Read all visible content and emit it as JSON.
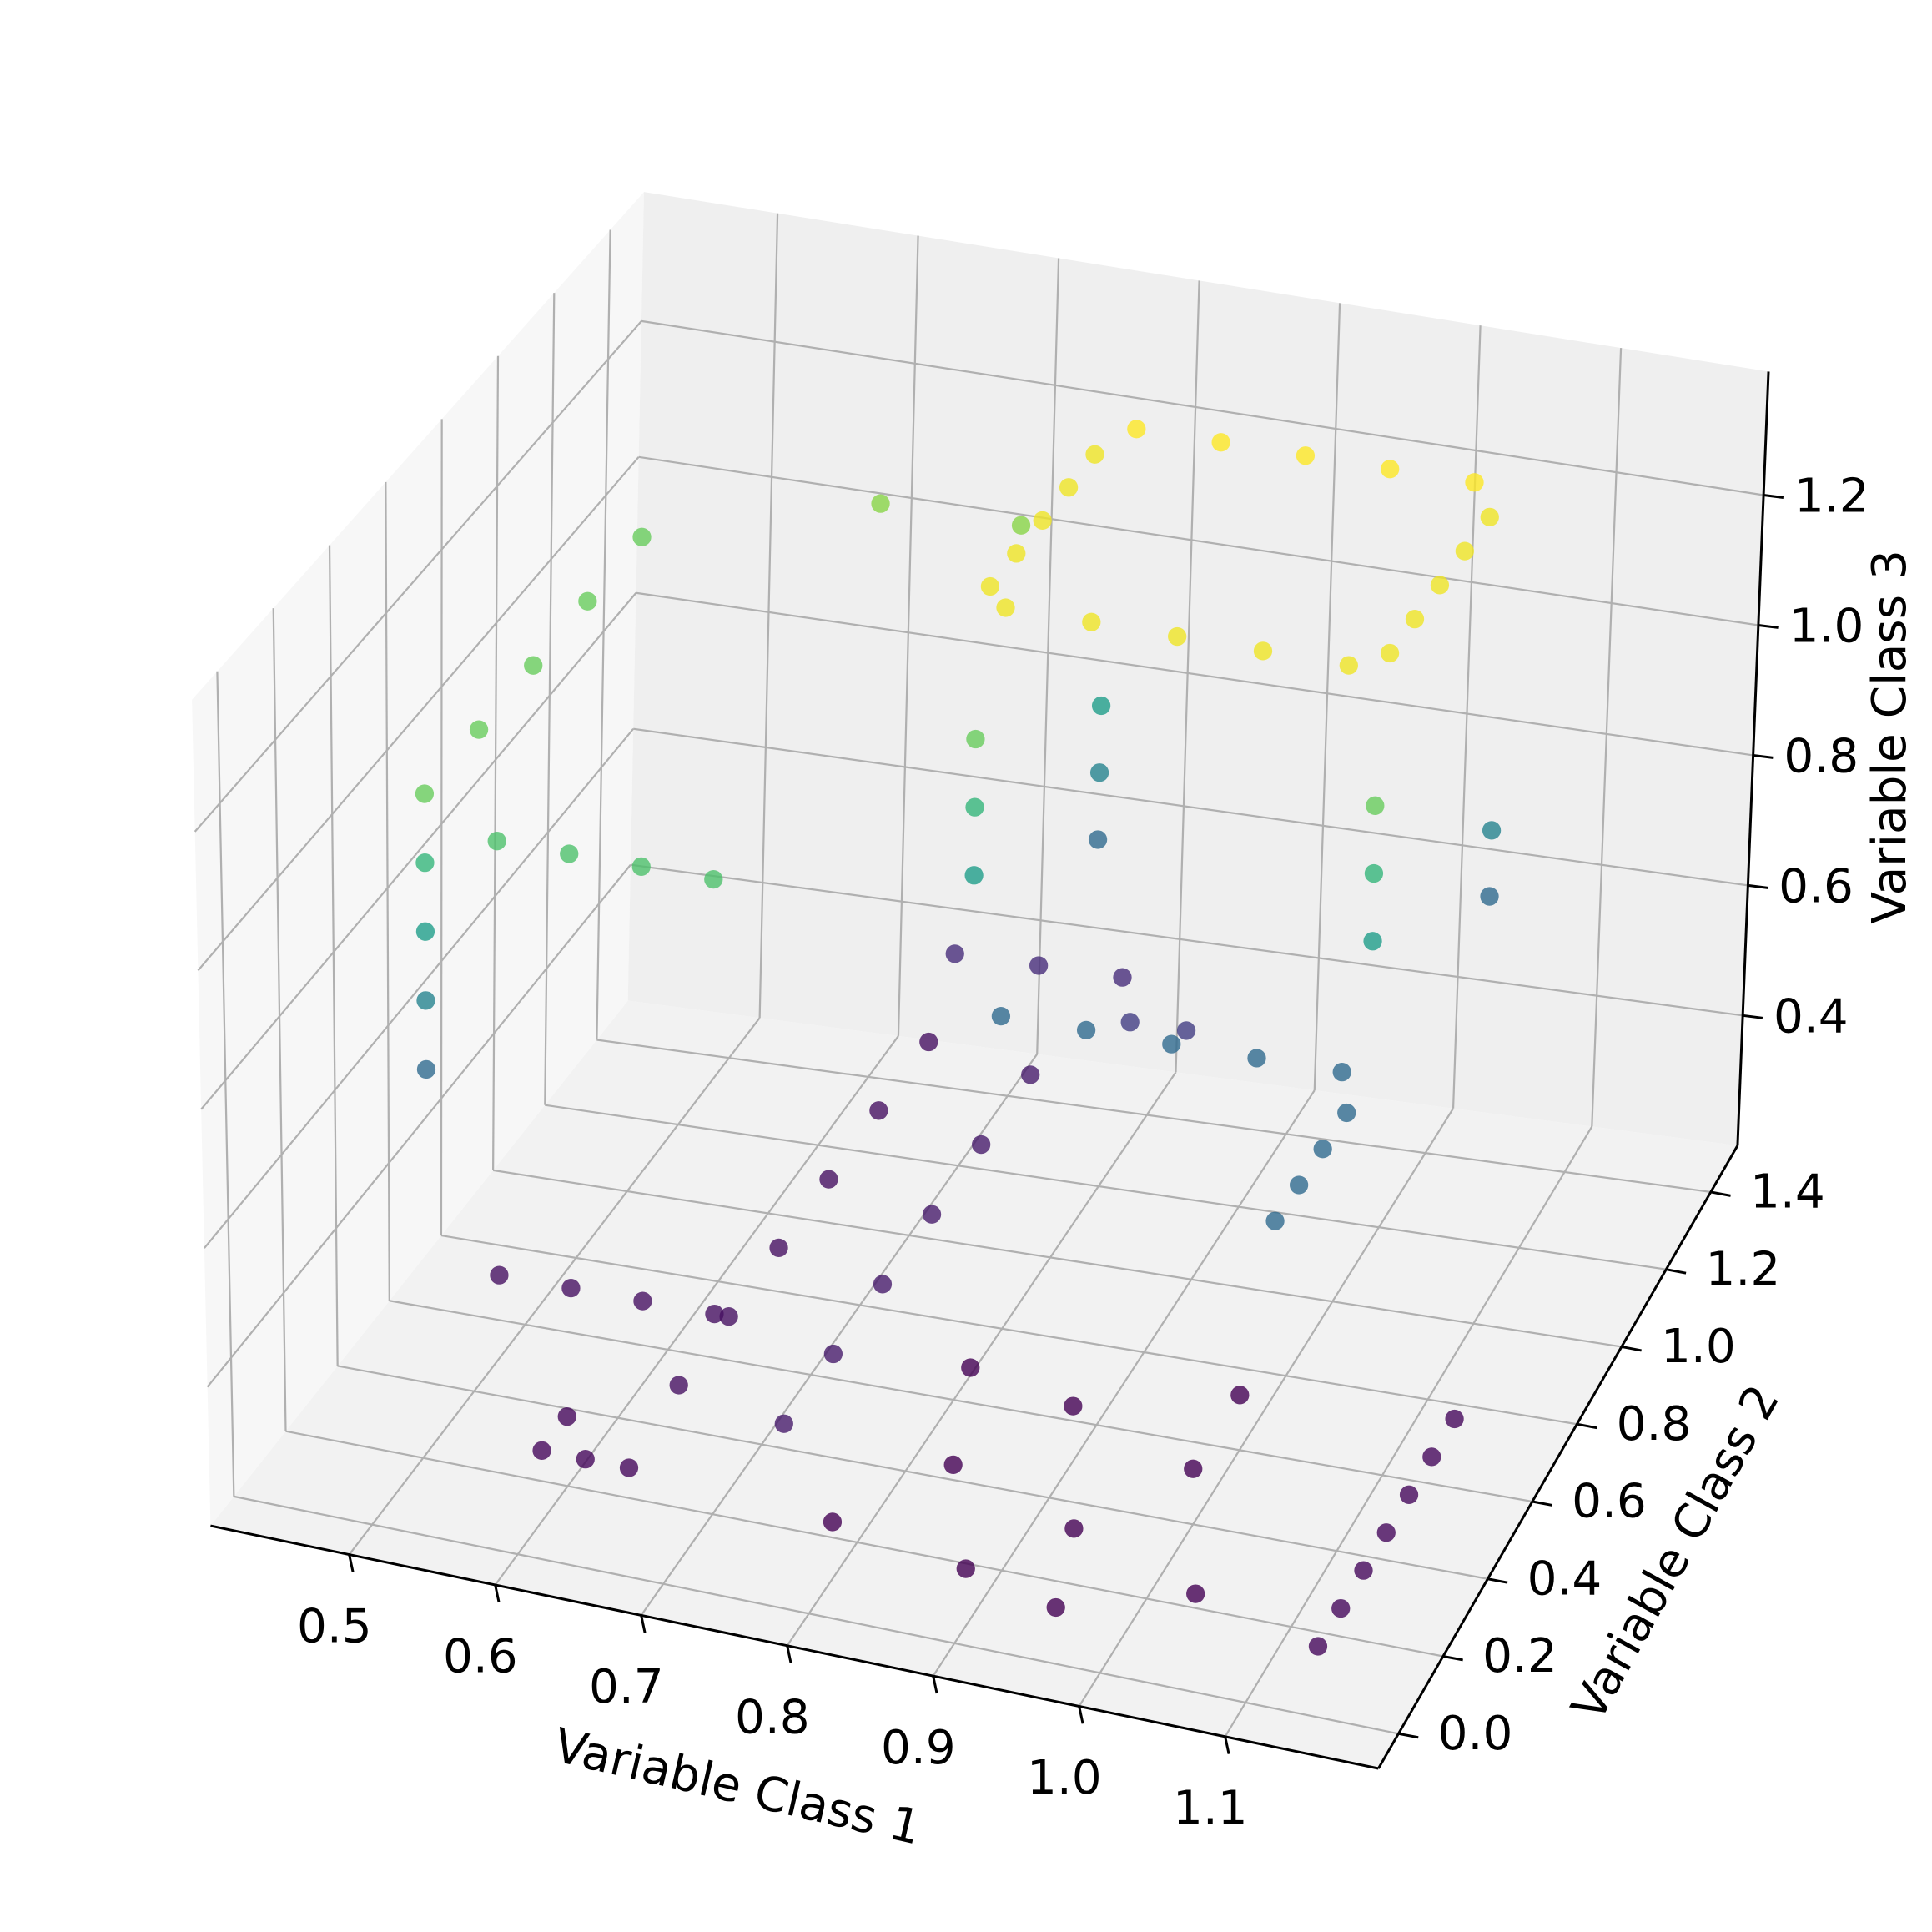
{
  "chart_data": {
    "type": "scatter3d",
    "x_label": "Variable Class 1",
    "y_label": "Variable Class 2",
    "z_label": "Variable Class 3",
    "xlim": [
      0.405,
      1.205
    ],
    "ylim": [
      -0.09,
      1.52
    ],
    "zlim": [
      0.2,
      1.39
    ],
    "xticks": [
      0.5,
      0.6,
      0.7,
      0.8,
      0.9,
      {
        "value": 1,
        "label": "1.0"
      },
      1.1
    ],
    "yticks": [
      {
        "value": 0,
        "label": "0.0"
      },
      0.2,
      0.4,
      0.6,
      0.8,
      {
        "value": 1,
        "label": "1.0"
      },
      1.2,
      1.4
    ],
    "zticks": [
      0.4,
      0.6,
      0.8,
      {
        "value": 1,
        "label": "1.0"
      },
      1.2
    ],
    "grid": true,
    "colormap": "viridis",
    "x": [
      0.78,
      0.84,
      0.9,
      0.96,
      1.02,
      0.78,
      0.84,
      0.9,
      0.96,
      1.02,
      0.76,
      0.76,
      0.76,
      0.76,
      0.76,
      1.04,
      1.04,
      1.04,
      1.04,
      1.04,
      0.45,
      0.45,
      0.45,
      0.45,
      0.45,
      0.5,
      0.55,
      0.6,
      0.65,
      0.76,
      0.76,
      0.76,
      1.04,
      1.04,
      1.04,
      0.6,
      0.7,
      0.45,
      0.45,
      0.45,
      0.45,
      0.78,
      0.84,
      0.9,
      0.96,
      1.02,
      1.04,
      1.04,
      1.04,
      1.04,
      0.76,
      0.76,
      0.76,
      1.04,
      1.04,
      0.5,
      0.55,
      0.6,
      0.65,
      0.6,
      0.63,
      0.66,
      0.6,
      0.66,
      0.66,
      0.66,
      0.66,
      0.66,
      0.66,
      0.75,
      0.75,
      0.75,
      0.75,
      0.75,
      0.75,
      0.8,
      0.85,
      0.9,
      0.95,
      1.0,
      1.05,
      0.9,
      1.0,
      0.82,
      0.97,
      1.15,
      1.15,
      1.15,
      1.15,
      1.15,
      1.15,
      1.15,
      0.66,
      0.72,
      0.78,
      0.82,
      0.86
    ],
    "y": [
      0.9,
      0.9,
      0.9,
      0.9,
      0.9,
      1.4,
      1.4,
      1.4,
      1.4,
      1.4,
      0.95,
      1.05,
      1.15,
      1.25,
      1.35,
      0.95,
      1.05,
      1.15,
      1.25,
      1.35,
      0.5,
      0.7,
      0.9,
      1.1,
      1.3,
      0.5,
      0.5,
      0.5,
      0.5,
      0.9,
      0.9,
      0.9,
      0.9,
      0.9,
      0.9,
      1.4,
      1.4,
      0.5,
      0.5,
      0.5,
      0.5,
      0.9,
      0.9,
      0.9,
      0.9,
      0.9,
      0.5,
      0.6,
      0.7,
      0.8,
      1.4,
      1.4,
      1.4,
      1.4,
      1.4,
      0.5,
      0.5,
      0.5,
      0.5,
      0.1,
      0.1,
      0.1,
      0.2,
      0.3,
      0.5,
      0.7,
      0.9,
      1.1,
      1.3,
      0.2,
      0.4,
      0.6,
      0.8,
      1.0,
      1.2,
      0.1,
      0.3,
      0.05,
      0.2,
      0.4,
      0.1,
      0.5,
      0.6,
      0.55,
      0.0,
      0.0,
      0.1,
      0.2,
      0.3,
      0.4,
      0.5,
      0.6,
      1.4,
      1.4,
      1.4,
      1.2,
      1.2
    ],
    "z": [
      1.2,
      1.2,
      1.2,
      1.2,
      1.2,
      1.22,
      1.22,
      1.22,
      1.22,
      1.22,
      1.2,
      1.2,
      1.2,
      1.2,
      1.2,
      1.2,
      1.2,
      1.2,
      1.2,
      1.2,
      1.0,
      1.0,
      1.0,
      1.0,
      1.0,
      0.95,
      0.95,
      0.95,
      0.95,
      0.8,
      0.9,
      1.0,
      0.8,
      0.9,
      1.0,
      1.05,
      1.05,
      0.6,
      0.7,
      0.8,
      0.9,
      0.6,
      0.6,
      0.6,
      0.6,
      0.6,
      0.6,
      0.6,
      0.6,
      0.6,
      0.6,
      0.7,
      0.8,
      0.6,
      0.7,
      0.32,
      0.32,
      0.32,
      0.32,
      0.3,
      0.3,
      0.3,
      0.3,
      0.32,
      0.32,
      0.32,
      0.32,
      0.32,
      0.32,
      0.35,
      0.35,
      0.35,
      0.35,
      0.35,
      0.35,
      0.28,
      0.28,
      0.28,
      0.28,
      0.28,
      0.28,
      0.28,
      0.28,
      0.28,
      0.28,
      0.3,
      0.3,
      0.3,
      0.3,
      0.3,
      0.3,
      0.3,
      0.4,
      0.4,
      0.4,
      0.45,
      0.45
    ]
  }
}
